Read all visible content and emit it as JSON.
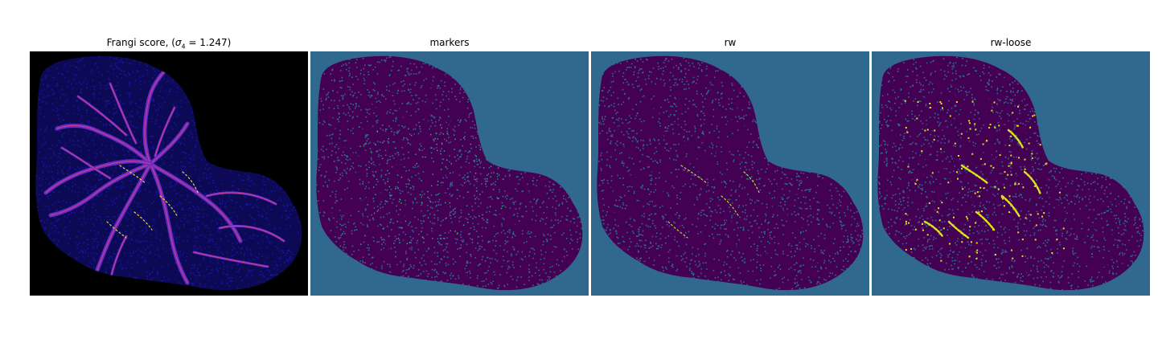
{
  "panels": [
    {
      "id": "frangi",
      "title_prefix": "Frangi score, (",
      "title_symbol": "σ",
      "title_subscript": "4",
      "title_suffix": " = 1.247)",
      "colors": {
        "background": "#000000",
        "tissue": "#1c12a8",
        "tissue_dark": "#0d0a55",
        "vessel": "#6a2bc0",
        "vessel_edge": "#e0408a",
        "highlight": "#f3d23a"
      }
    },
    {
      "id": "markers",
      "title": "markers",
      "colors": {
        "background": "#31688e",
        "tissue": "#440154",
        "tissue_dots": "#2f6c8e",
        "vessel": "#440154",
        "seed": "#35b779"
      }
    },
    {
      "id": "rw",
      "title": "rw",
      "colors": {
        "background": "#31688e",
        "tissue": "#440154",
        "tissue_dots": "#2f6c8e",
        "vessel": "#440154",
        "highlight": "#b5de2b"
      }
    },
    {
      "id": "rw-loose",
      "title": "rw-loose",
      "colors": {
        "background": "#31688e",
        "tissue": "#440154",
        "tissue_dots": "#2f6c8e",
        "vessel": "#440154",
        "highlight": "#dde318"
      }
    }
  ]
}
